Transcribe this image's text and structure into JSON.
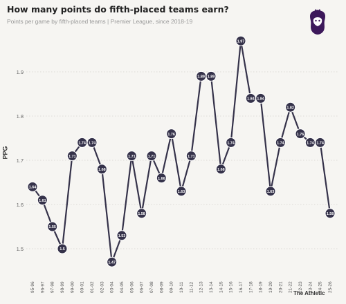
{
  "header": {
    "title": "How many points do fifth-placed teams earn?",
    "subtitle": "Points per game by fifth-placed teams | Premier League, since 2018-19"
  },
  "brand": {
    "text": "The Athletic"
  },
  "logo": {
    "icon": "premier-league-lion-icon",
    "color": "#3d195b"
  },
  "colors": {
    "line": "#35324a",
    "marker": "#35324a",
    "marker_text": "#ffffff",
    "grid": "#d4d2cc",
    "background": "#f6f5f2"
  },
  "chart_data": {
    "type": "line",
    "title": "How many points do fifth-placed teams earn?",
    "subtitle": "Points per game by fifth-placed teams | Premier League, since 2018-19",
    "xlabel": "",
    "ylabel": "PPG",
    "ylim": [
      1.45,
      2.0
    ],
    "yticks": [
      "1.5",
      "1.6",
      "1.7",
      "1.8",
      "1.9"
    ],
    "grid": true,
    "categories": [
      "95-96",
      "96-97",
      "97-98",
      "98-99",
      "99-00",
      "00-01",
      "01-02",
      "02-03",
      "03-04",
      "04-05",
      "05-06",
      "06-07",
      "07-08",
      "08-09",
      "09-10",
      "10-11",
      "11-12",
      "12-13",
      "13-14",
      "14-15",
      "15-16",
      "16-17",
      "17-18",
      "18-19",
      "19-20",
      "20-21",
      "21-22",
      "22-23",
      "23-24",
      "24-25",
      "25-26"
    ],
    "values": [
      1.64,
      1.61,
      1.55,
      1.5,
      1.71,
      1.74,
      1.74,
      1.68,
      1.47,
      1.53,
      1.71,
      1.58,
      1.71,
      1.66,
      1.76,
      1.63,
      1.71,
      1.89,
      1.89,
      1.68,
      1.74,
      1.97,
      1.84,
      1.84,
      1.63,
      1.74,
      1.82,
      1.76,
      1.74,
      1.74,
      1.58
    ],
    "labels": [
      "1.64",
      "1.61",
      "1.55",
      "1.5",
      "1.71",
      "1.74",
      "1.74",
      "1.68",
      "1.47",
      "1.53",
      "1.71",
      "1.58",
      "1.71",
      "1.66",
      "1.76",
      "1.63",
      "1.71",
      "1.89",
      "1.89",
      "1.68",
      "1.74",
      "1.97",
      "1.84",
      "1.84",
      "1.63",
      "1.74",
      "1.82",
      "1.76",
      "1.74",
      "1.74",
      "1.58"
    ]
  }
}
